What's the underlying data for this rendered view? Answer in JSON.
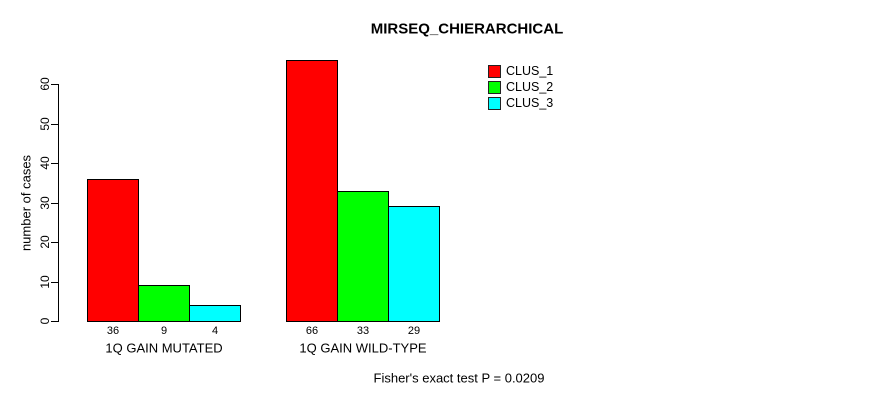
{
  "chart_data": {
    "type": "bar",
    "title": "MIRSEQ_CHIERARCHICAL",
    "ylabel": "number of cases",
    "xlabel": "",
    "categories": [
      "1Q GAIN MUTATED",
      "1Q GAIN WILD-TYPE"
    ],
    "series": [
      {
        "name": "CLUS_1",
        "color": "#FF0000",
        "values": [
          36,
          66
        ]
      },
      {
        "name": "CLUS_2",
        "color": "#00FF00",
        "values": [
          9,
          33
        ]
      },
      {
        "name": "CLUS_3",
        "color": "#00FFFF",
        "values": [
          4,
          29
        ]
      }
    ],
    "yticks": [
      0,
      10,
      20,
      30,
      40,
      50,
      60
    ],
    "ylim": [
      0,
      66
    ],
    "grid": false,
    "bar_borders": true,
    "value_labels_shown": true,
    "legend_position": "top-right",
    "footnote": "Fisher's exact test P = 0.0209",
    "background_color": "#FFFFFF",
    "axis_color": "#000000"
  }
}
